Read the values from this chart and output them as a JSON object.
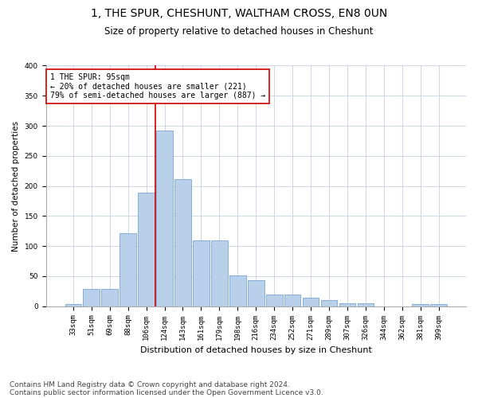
{
  "title1": "1, THE SPUR, CHESHUNT, WALTHAM CROSS, EN8 0UN",
  "title2": "Size of property relative to detached houses in Cheshunt",
  "xlabel": "Distribution of detached houses by size in Cheshunt",
  "ylabel": "Number of detached properties",
  "footer1": "Contains HM Land Registry data © Crown copyright and database right 2024.",
  "footer2": "Contains public sector information licensed under the Open Government Licence v3.0.",
  "annotation_line1": "1 THE SPUR: 95sqm",
  "annotation_line2": "← 20% of detached houses are smaller (221)",
  "annotation_line3": "79% of semi-detached houses are larger (887) →",
  "categories": [
    "33sqm",
    "51sqm",
    "69sqm",
    "88sqm",
    "106sqm",
    "124sqm",
    "143sqm",
    "161sqm",
    "179sqm",
    "198sqm",
    "216sqm",
    "234sqm",
    "252sqm",
    "271sqm",
    "289sqm",
    "307sqm",
    "326sqm",
    "344sqm",
    "362sqm",
    "381sqm",
    "399sqm"
  ],
  "values": [
    4,
    29,
    29,
    122,
    189,
    292,
    211,
    109,
    110,
    51,
    43,
    20,
    20,
    14,
    10,
    5,
    5,
    0,
    0,
    3,
    3
  ],
  "bar_color": "#b8d0ea",
  "bar_edge_color": "#6699cc",
  "vline_color": "#cc0000",
  "vline_x": 4.5,
  "annotation_box_color": "#ffffff",
  "annotation_box_edge_color": "#cc0000",
  "background_color": "#ffffff",
  "grid_color": "#c8d0e0",
  "ylim": [
    0,
    400
  ],
  "yticks": [
    0,
    50,
    100,
    150,
    200,
    250,
    300,
    350,
    400
  ],
  "title1_fontsize": 10,
  "title2_fontsize": 8.5,
  "xlabel_fontsize": 8,
  "ylabel_fontsize": 7.5,
  "tick_fontsize": 6.5,
  "annotation_fontsize": 7,
  "footer_fontsize": 6.5
}
